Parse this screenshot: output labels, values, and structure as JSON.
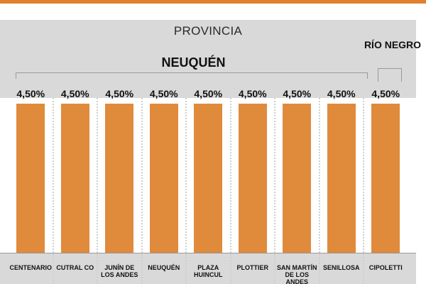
{
  "chart_data": {
    "type": "bar",
    "header": "PROVINCIA",
    "groups": [
      {
        "label": "NEUQUÉN",
        "count": 8
      },
      {
        "label": "RÍO NEGRO",
        "count": 1
      }
    ],
    "categories": [
      "CENTENARIO",
      "CUTRAL CO",
      "JUNÍN DE LOS ANDES",
      "NEUQUÉN",
      "PLAZA HUINCUL",
      "PLOTTIER",
      "SAN MARTÍN DE LOS ANDES",
      "SENILLOSA",
      "CIPOLETTI"
    ],
    "values": [
      4.5,
      4.5,
      4.5,
      4.5,
      4.5,
      4.5,
      4.5,
      4.5,
      4.5
    ],
    "value_labels": [
      "4,50%",
      "4,50%",
      "4,50%",
      "4,50%",
      "4,50%",
      "4,50%",
      "4,50%",
      "4,50%",
      "4,50%"
    ],
    "ylim": [
      0,
      4.5
    ],
    "grid": false,
    "colors": {
      "bar": "#e08a3c",
      "accent": "#e07f2f",
      "band": "#d9d9d9"
    }
  }
}
